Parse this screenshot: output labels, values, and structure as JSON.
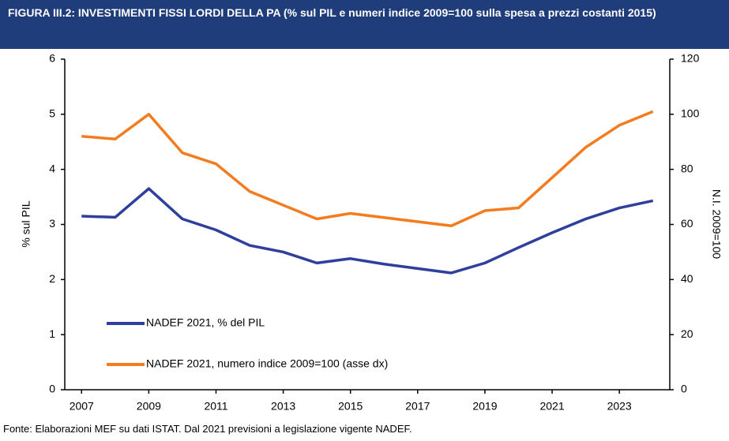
{
  "chart_data": {
    "type": "line",
    "title": "FIGURA III.2: INVESTIMENTI FISSI LORDI DELLA PA (% sul PIL e numeri indice 2009=100 sulla spesa a prezzi costanti 2015)",
    "source": "Fonte: Elaborazioni MEF su dati ISTAT. Dal 2021 previsioni a legislazione vigente NADEF.",
    "y_label": "% sul PIL",
    "y2_label": "N.I. 2009=100",
    "x": [
      2007,
      2008,
      2009,
      2010,
      2011,
      2012,
      2013,
      2014,
      2015,
      2016,
      2017,
      2018,
      2019,
      2020,
      2021,
      2022,
      2023,
      2024
    ],
    "xlim": [
      2006.5,
      2024.5
    ],
    "xticks": [
      2007,
      2009,
      2011,
      2013,
      2015,
      2017,
      2019,
      2021,
      2023
    ],
    "ylim": [
      0,
      6
    ],
    "yticks": [
      0,
      1,
      2,
      3,
      4,
      5,
      6
    ],
    "y2lim": [
      0,
      120
    ],
    "y2ticks": [
      0,
      20,
      40,
      60,
      80,
      100,
      120
    ],
    "legend": "lower left",
    "series": [
      {
        "name": "NADEF 2021, % del PIL",
        "color": "#2e3f9e",
        "values": [
          3.15,
          3.13,
          3.65,
          3.1,
          2.9,
          2.62,
          2.5,
          2.3,
          2.38,
          2.28,
          2.2,
          2.12,
          2.3,
          2.58,
          2.85,
          3.1,
          3.3,
          3.43
        ]
      },
      {
        "name": "NADEF 2021, numero indice 2009=100 (asse dx)",
        "color": "#f47c20",
        "axis": "y2",
        "values": [
          92,
          91,
          100,
          86,
          82,
          72,
          67,
          62,
          64,
          62.5,
          61,
          59.5,
          65,
          66,
          77,
          88,
          96,
          101
        ]
      }
    ]
  }
}
